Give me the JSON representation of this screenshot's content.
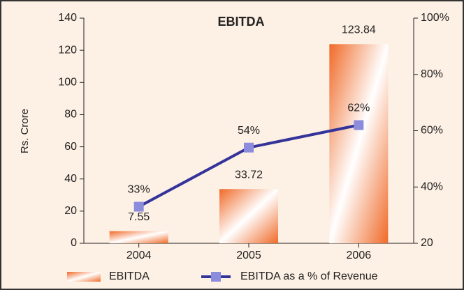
{
  "chart_data": {
    "type": "bar",
    "title": "EBITDA",
    "ylabel": "Rs. Crore",
    "categories": [
      "2004",
      "2005",
      "2006"
    ],
    "series": [
      {
        "name": "EBITDA",
        "type": "bar",
        "color": "#f06a28",
        "values": [
          7.55,
          33.72,
          123.84
        ]
      },
      {
        "name": "EBITDA as a % of Revenue",
        "type": "line",
        "axis": "y2",
        "color": "#33339a",
        "marker_color": "#8c8cdc",
        "values": [
          33,
          54,
          62
        ],
        "value_labels": [
          "33%",
          "54%",
          "62%"
        ]
      }
    ],
    "ylim": [
      0,
      140
    ],
    "yticks": [
      0,
      20,
      40,
      60,
      80,
      100,
      120,
      140
    ],
    "y2lim": [
      20,
      100
    ],
    "y2ticks": [
      20,
      {
        "value": 40,
        "label": "40%"
      },
      {
        "value": 60,
        "label": "60%"
      },
      {
        "value": 80,
        "label": "80%"
      },
      {
        "value": 100,
        "label": "100%"
      }
    ]
  }
}
